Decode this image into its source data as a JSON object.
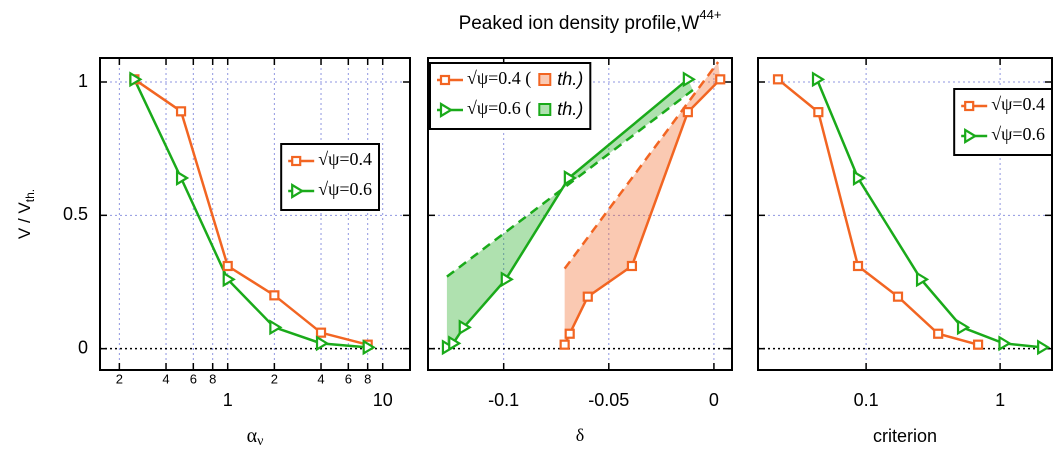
{
  "title": "Peaked ion density profile,W",
  "title_sup": "44+",
  "chart_data": [
    {
      "type": "line",
      "ylabel": "V / V",
      "ylabel_sub": "th.",
      "xlabel": "α",
      "xlabel_sub": "ν",
      "xscale": "log",
      "xlim": [
        0.15,
        15
      ],
      "xticks": [
        {
          "value": 0.2,
          "label": "2"
        },
        {
          "value": 0.4,
          "label": "4"
        },
        {
          "value": 0.6,
          "label": "6"
        },
        {
          "value": 0.8,
          "label": "8"
        },
        1,
        {
          "value": 2,
          "label": "2"
        },
        {
          "value": 4,
          "label": "4"
        },
        {
          "value": 6,
          "label": "6"
        },
        {
          "value": 8,
          "label": "8"
        },
        10
      ],
      "ylim": [
        -0.08,
        1.09
      ],
      "yticks": [
        0,
        0.5,
        1
      ],
      "ytick_labels": true,
      "grid": true,
      "legend": "right",
      "series": [
        {
          "name": "√ψ=0.4",
          "color": "#f26522",
          "marker": "square",
          "x": [
            0.25,
            0.5,
            1,
            2,
            4,
            8
          ],
          "values": [
            1.01,
            0.89,
            0.31,
            0.2,
            0.06,
            0.015
          ]
        },
        {
          "name": "√ψ=0.6",
          "color": "#1aaa1a",
          "marker": "triangle",
          "x": [
            0.25,
            0.5,
            1,
            2,
            4,
            8
          ],
          "values": [
            1.01,
            0.64,
            0.26,
            0.08,
            0.02,
            0.005
          ]
        }
      ]
    },
    {
      "type": "line",
      "xlabel": "δ",
      "xscale": "linear",
      "xlim": [
        -0.136,
        0.0086
      ],
      "xticks": [
        -0.1,
        -0.05,
        0
      ],
      "ylim": [
        -0.08,
        1.09
      ],
      "yticks": [
        0,
        0.5,
        1
      ],
      "ytick_labels": false,
      "grid": true,
      "legend": "upper left",
      "series": [
        {
          "name": "√ψ=0.4 (",
          "color": "#f26522",
          "marker": "square",
          "x": [
            -0.071,
            -0.0686,
            -0.06,
            -0.039,
            -0.0124,
            0.003
          ],
          "values": [
            0.015,
            0.056,
            0.195,
            0.31,
            0.887,
            1.01
          ]
        },
        {
          "name": "√ψ=0.6 (",
          "color": "#1aaa1a",
          "marker": "triangle",
          "x": [
            -0.127,
            -0.124,
            -0.119,
            -0.099,
            -0.069,
            -0.0124
          ],
          "values": [
            0.005,
            0.02,
            0.08,
            0.26,
            0.64,
            1.01
          ]
        }
      ],
      "th_series": [
        {
          "name": "th.)",
          "color": "#f26522",
          "x": [
            -0.071,
            0.002
          ],
          "values": [
            0.3,
            1.075
          ]
        },
        {
          "name": "th.)",
          "color": "#1aaa1a",
          "x": [
            -0.127,
            -0.01
          ],
          "values": [
            0.27,
            0.97
          ]
        }
      ]
    },
    {
      "type": "line",
      "xlabel": "criterion",
      "xscale": "log",
      "xlim": [
        0.0156,
        2.44
      ],
      "xticks": [
        0.1,
        1
      ],
      "ylim": [
        -0.08,
        1.09
      ],
      "yticks": [
        0,
        0.5,
        1
      ],
      "ytick_labels": false,
      "grid": true,
      "legend": "upper right",
      "series": [
        {
          "name": "√ψ=0.4",
          "color": "#f26522",
          "marker": "square",
          "x": [
            0.022,
            0.044,
            0.087,
            0.173,
            0.345,
            0.685
          ],
          "values": [
            1.01,
            0.887,
            0.31,
            0.195,
            0.056,
            0.015
          ]
        },
        {
          "name": "√ψ=0.6",
          "color": "#1aaa1a",
          "marker": "triangle",
          "x": [
            0.043,
            0.087,
            0.257,
            0.52,
            1.06,
            2.06
          ],
          "values": [
            1.01,
            0.64,
            0.26,
            0.08,
            0.02,
            0.005
          ]
        }
      ]
    }
  ]
}
